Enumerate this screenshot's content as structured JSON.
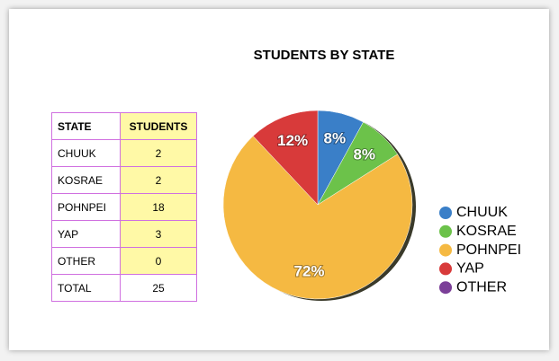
{
  "table": {
    "header": [
      "STATE",
      "STUDENTS"
    ],
    "rows": [
      [
        "CHUUK",
        "2"
      ],
      [
        "KOSRAE",
        "2"
      ],
      [
        "POHNPEI",
        "18"
      ],
      [
        "YAP",
        "3"
      ],
      [
        "OTHER",
        "0"
      ],
      [
        "TOTAL",
        "25"
      ]
    ]
  },
  "chart_data": {
    "type": "pie",
    "title": "STUDENTS BY STATE",
    "categories": [
      "CHUUK",
      "KOSRAE",
      "POHNPEI",
      "YAP",
      "OTHER"
    ],
    "values": [
      8,
      8,
      72,
      12,
      0
    ],
    "value_labels": [
      "8%",
      "8%",
      "72%",
      "12%",
      null
    ],
    "colors": [
      "#3a7fc8",
      "#6cc24a",
      "#f5b942",
      "#d83a3a",
      "#7b3f98"
    ],
    "legend": "right"
  }
}
